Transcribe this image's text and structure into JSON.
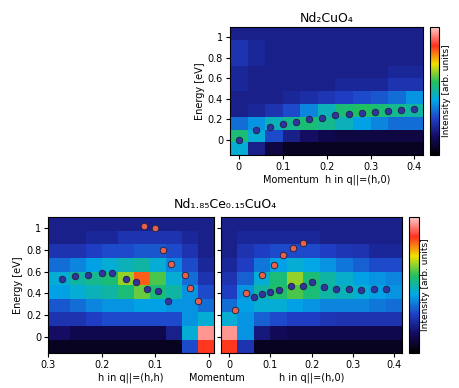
{
  "chart_data": [
    {
      "type": "heatmap",
      "title": "Nd₂CuO₄",
      "xlabel": "Momentum  h in q||=(h,0)",
      "ylabel": "Energy [eV]",
      "xlim": [
        -0.02,
        0.42
      ],
      "xticks": [
        0,
        0.1,
        0.2,
        0.3,
        0.4
      ],
      "ylim": [
        -0.15,
        1.1
      ],
      "yticks": [
        0,
        0.2,
        0.4,
        0.6,
        0.8,
        1
      ],
      "heatmap": {
        "x_edges": [
          -0.02,
          0.02,
          0.06,
          0.1,
          0.14,
          0.18,
          0.22,
          0.26,
          0.3,
          0.34,
          0.38,
          0.42
        ],
        "y_edges": [
          -0.15,
          -0.025,
          0.1,
          0.225,
          0.35,
          0.475,
          0.6,
          0.725,
          0.85,
          0.975,
          1.1
        ],
        "cells": [
          [
            0.45,
            0.2,
            0.1,
            0.05,
            0.05,
            0.05,
            0.05,
            0.05,
            0.05,
            0.05,
            0.05
          ],
          [
            0.55,
            0.45,
            0.3,
            0.2,
            0.15,
            0.12,
            0.1,
            0.1,
            0.1,
            0.1,
            0.1
          ],
          [
            0.35,
            0.4,
            0.48,
            0.52,
            0.55,
            0.52,
            0.48,
            0.42,
            0.38,
            0.35,
            0.35
          ],
          [
            0.2,
            0.22,
            0.25,
            0.3,
            0.38,
            0.48,
            0.55,
            0.57,
            0.55,
            0.52,
            0.5
          ],
          [
            0.2,
            0.2,
            0.2,
            0.22,
            0.24,
            0.26,
            0.28,
            0.3,
            0.32,
            0.35,
            0.4
          ],
          [
            0.22,
            0.2,
            0.2,
            0.2,
            0.2,
            0.2,
            0.22,
            0.22,
            0.22,
            0.25,
            0.25
          ],
          [
            0.22,
            0.2,
            0.2,
            0.2,
            0.2,
            0.2,
            0.2,
            0.2,
            0.2,
            0.22,
            0.22
          ],
          [
            0.25,
            0.22,
            0.2,
            0.2,
            0.2,
            0.2,
            0.2,
            0.2,
            0.2,
            0.2,
            0.2
          ],
          [
            0.25,
            0.22,
            0.2,
            0.2,
            0.2,
            0.2,
            0.2,
            0.2,
            0.2,
            0.2,
            0.2
          ],
          [
            0.2,
            0.2,
            0.2,
            0.2,
            0.2,
            0.2,
            0.2,
            0.2,
            0.2,
            0.2,
            0.2
          ]
        ]
      },
      "colorbar": {
        "label": "Intensity [arb. units]",
        "range": [
          0,
          1
        ],
        "ticks": []
      },
      "series": [
        {
          "color": "#3232a0",
          "marker": "o",
          "x": [
            0,
            0.04,
            0.07,
            0.1,
            0.13,
            0.16,
            0.19,
            0.22,
            0.25,
            0.28,
            0.31,
            0.34,
            0.37,
            0.4
          ],
          "values": [
            0,
            0.1,
            0.13,
            0.15,
            0.17,
            0.2,
            0.21,
            0.24,
            0.25,
            0.26,
            0.27,
            0.28,
            0.29,
            0.3
          ]
        }
      ]
    },
    {
      "type": "heatmap",
      "title": "Nd₁.₈₅Ce₀.₁₅CuO₄",
      "annotation": "Momentum",
      "xlabel": "h in q||=(h,h)",
      "ylabel": "Energy [eV]",
      "xlim": [
        0.3,
        -0.01
      ],
      "xticks": [
        0.3,
        0.2,
        0.1,
        0
      ],
      "ylim": [
        -0.15,
        1.1
      ],
      "yticks": [
        0,
        0.2,
        0.4,
        0.6,
        0.8,
        1
      ],
      "heatmap": {
        "x_edges": [
          -0.01,
          0.02,
          0.05,
          0.08,
          0.11,
          0.14,
          0.17,
          0.2,
          0.23,
          0.26,
          0.3
        ],
        "y_edges": [
          -0.15,
          -0.025,
          0.1,
          0.225,
          0.35,
          0.475,
          0.6,
          0.725,
          0.85,
          0.975,
          1.1
        ],
        "cells": [
          [
            0.85,
            0.3,
            0.05,
            0.05,
            0.05,
            0.05,
            0.05,
            0.05,
            0.05,
            0.05
          ],
          [
            0.95,
            0.45,
            0.2,
            0.12,
            0.12,
            0.12,
            0.12,
            0.12,
            0.12,
            0.15
          ],
          [
            0.45,
            0.4,
            0.3,
            0.3,
            0.3,
            0.3,
            0.3,
            0.28,
            0.25,
            0.25
          ],
          [
            0.35,
            0.4,
            0.4,
            0.42,
            0.42,
            0.4,
            0.4,
            0.38,
            0.35,
            0.32
          ],
          [
            0.3,
            0.4,
            0.5,
            0.55,
            0.62,
            0.55,
            0.5,
            0.48,
            0.45,
            0.42
          ],
          [
            0.25,
            0.35,
            0.45,
            0.6,
            0.82,
            0.65,
            0.55,
            0.52,
            0.5,
            0.45
          ],
          [
            0.22,
            0.3,
            0.38,
            0.45,
            0.5,
            0.48,
            0.45,
            0.42,
            0.38,
            0.35
          ],
          [
            0.2,
            0.25,
            0.3,
            0.32,
            0.32,
            0.3,
            0.3,
            0.28,
            0.25,
            0.25
          ],
          [
            0.2,
            0.22,
            0.25,
            0.25,
            0.25,
            0.25,
            0.22,
            0.22,
            0.2,
            0.2
          ],
          [
            0.2,
            0.2,
            0.2,
            0.2,
            0.2,
            0.2,
            0.2,
            0.2,
            0.2,
            0.2
          ]
        ]
      },
      "series": [
        {
          "color": "#3232a0",
          "marker": "o",
          "x": [
            0.275,
            0.25,
            0.225,
            0.2,
            0.18,
            0.155,
            0.135,
            0.115,
            0.095,
            0.075
          ],
          "values": [
            0.53,
            0.56,
            0.57,
            0.59,
            0.59,
            0.53,
            0.5,
            0.44,
            0.42,
            0.33
          ]
        },
        {
          "color": "#e8604a",
          "marker": "o",
          "x": [
            0.12,
            0.1,
            0.085,
            0.07,
            0.045,
            0.035,
            0.02
          ],
          "values": [
            1.02,
            1.0,
            0.8,
            0.67,
            0.57,
            0.45,
            0.33
          ]
        }
      ]
    },
    {
      "type": "heatmap",
      "xlabel": "h in q||=(h,0)",
      "tick_labels": "x",
      "xlim": [
        -0.02,
        0.42
      ],
      "xticks": [
        0,
        0.1,
        0.2,
        0.3,
        0.4
      ],
      "ylim": [
        -0.15,
        1.1
      ],
      "yticks": [
        0,
        0.2,
        0.4,
        0.6,
        0.8,
        1
      ],
      "heatmap": {
        "x_edges": [
          -0.02,
          0.02,
          0.06,
          0.1,
          0.14,
          0.18,
          0.22,
          0.26,
          0.3,
          0.34,
          0.38,
          0.42
        ],
        "y_edges": [
          -0.15,
          -0.025,
          0.1,
          0.225,
          0.35,
          0.475,
          0.6,
          0.725,
          0.85,
          0.975,
          1.1
        ],
        "cells": [
          [
            0.85,
            0.25,
            0.05,
            0.05,
            0.05,
            0.05,
            0.05,
            0.05,
            0.05,
            0.05,
            0.05
          ],
          [
            0.95,
            0.4,
            0.18,
            0.13,
            0.12,
            0.12,
            0.12,
            0.12,
            0.12,
            0.12,
            0.12
          ],
          [
            0.45,
            0.4,
            0.33,
            0.3,
            0.28,
            0.28,
            0.26,
            0.25,
            0.25,
            0.25,
            0.25
          ],
          [
            0.35,
            0.42,
            0.45,
            0.45,
            0.42,
            0.4,
            0.38,
            0.38,
            0.38,
            0.36,
            0.35
          ],
          [
            0.28,
            0.4,
            0.5,
            0.56,
            0.6,
            0.55,
            0.5,
            0.48,
            0.45,
            0.42,
            0.4
          ],
          [
            0.25,
            0.33,
            0.45,
            0.55,
            0.65,
            0.55,
            0.5,
            0.46,
            0.42,
            0.4,
            0.38
          ],
          [
            0.22,
            0.28,
            0.36,
            0.42,
            0.45,
            0.43,
            0.4,
            0.36,
            0.33,
            0.3,
            0.3
          ],
          [
            0.2,
            0.25,
            0.28,
            0.3,
            0.3,
            0.3,
            0.28,
            0.26,
            0.25,
            0.22,
            0.22
          ],
          [
            0.2,
            0.22,
            0.22,
            0.22,
            0.22,
            0.22,
            0.2,
            0.2,
            0.2,
            0.2,
            0.2
          ],
          [
            0.2,
            0.2,
            0.2,
            0.2,
            0.2,
            0.2,
            0.2,
            0.2,
            0.2,
            0.2,
            0.2
          ]
        ]
      },
      "colorbar": {
        "label": "Intensity [arb. units]",
        "range": [
          0,
          1
        ],
        "ticks": []
      },
      "series": [
        {
          "color": "#3232a0",
          "marker": "o",
          "x": [
            0.06,
            0.08,
            0.1,
            0.12,
            0.15,
            0.18,
            0.2,
            0.23,
            0.26,
            0.29,
            0.32,
            0.35,
            0.38
          ],
          "values": [
            0.37,
            0.39,
            0.41,
            0.43,
            0.47,
            0.47,
            0.5,
            0.46,
            0.44,
            0.44,
            0.43,
            0.44,
            0.44
          ]
        },
        {
          "color": "#e8604a",
          "marker": "o",
          "x": [
            0.015,
            0.04,
            0.08,
            0.11,
            0.13,
            0.155,
            0.18
          ],
          "values": [
            0.25,
            0.4,
            0.57,
            0.66,
            0.75,
            0.82,
            0.86
          ]
        }
      ]
    }
  ]
}
